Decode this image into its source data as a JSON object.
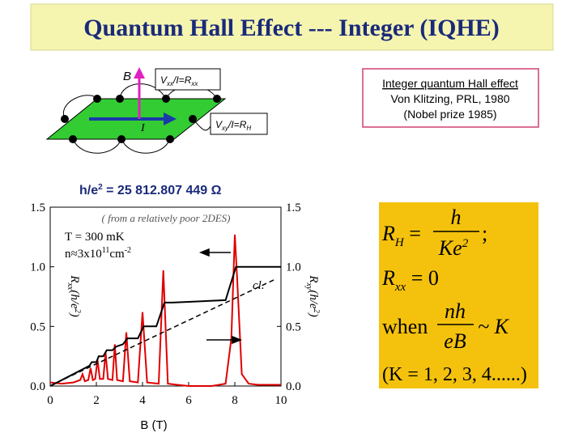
{
  "slide": {
    "title": "Quantum Hall Effect --- Integer (IQHE)",
    "diagram": {
      "b_label": "B",
      "i_label": "I",
      "vxx": [
        "V",
        "xx",
        "/I=R",
        "xx"
      ],
      "vxy": [
        "V",
        "xy",
        "/I=R",
        "H"
      ]
    },
    "reference": [
      "Integer quantum Hall effect",
      "Von Klitzing, PRL, 1980",
      "(Nobel prize 1985)"
    ],
    "constant": [
      "h/e",
      "2",
      " = 25 812.807 449 Ω"
    ],
    "formula": {
      "rh": [
        "R",
        "H",
        " = ",
        "h",
        "Ke",
        "2",
        ";"
      ],
      "rxx": [
        "R",
        "xx",
        " = 0"
      ],
      "when": [
        "when",
        "nh",
        "eB",
        "~ K"
      ],
      "k": "(K = 1, 2, 3, 4......)"
    }
  },
  "chart_data": {
    "type": "line",
    "xlabel": "B (T)",
    "ylabel": [
      "R",
      "xx",
      "(h/e",
      "2",
      ")"
    ],
    "y2label": [
      "R",
      "xy",
      "(h/e",
      "2",
      ")"
    ],
    "annotations": {
      "sample": "( from a relatively poor 2DES)",
      "temp": "T = 300 mK",
      "density": [
        "n≈3x10",
        "11",
        "cm",
        "-2"
      ],
      "classical": "cl."
    },
    "xlim": [
      0,
      10
    ],
    "xticks": [
      0,
      2,
      4,
      6,
      8,
      10
    ],
    "ylim": [
      0,
      1.5
    ],
    "yticks": [
      {
        "value": 0,
        "label": "0.0"
      },
      0.5,
      {
        "value": 1,
        "label": "1.0"
      },
      1.5
    ],
    "y2lim": [
      0,
      1.5
    ],
    "y2ticks": [
      {
        "value": 0,
        "label": "0.0"
      },
      0.5,
      {
        "value": 1,
        "label": "1.0"
      },
      1.5
    ],
    "series": [
      {
        "color": "#e00000",
        "x": [
          0,
          0.5,
          1,
          1.3,
          1.4,
          1.5,
          1.65,
          1.75,
          1.85,
          1.95,
          2.05,
          2.15,
          2.3,
          2.4,
          2.5,
          2.7,
          2.8,
          2.9,
          3.15,
          3.3,
          3.45,
          3.8,
          4.0,
          4.2,
          4.7,
          4.9,
          5.1,
          5.5,
          6,
          7,
          7.6,
          7.85,
          8.0,
          8.1,
          8.3,
          8.6,
          9,
          10
        ],
        "values": [
          0.03,
          0.02,
          0.03,
          0.05,
          0.1,
          0.04,
          0.05,
          0.15,
          0.05,
          0.06,
          0.22,
          0.06,
          0.06,
          0.28,
          0.06,
          0.05,
          0.35,
          0.05,
          0.04,
          0.45,
          0.04,
          0.03,
          0.62,
          0.03,
          0.02,
          0.97,
          0.02,
          0.01,
          0.0,
          0.0,
          0.02,
          0.4,
          1.27,
          0.9,
          0.1,
          0.02,
          0.01,
          0.01
        ]
      },
      {
        "color": "#000000",
        "axis": "y2",
        "x": [
          0,
          1.0,
          1.7,
          1.8,
          2.0,
          2.1,
          2.3,
          2.45,
          2.7,
          2.85,
          3.15,
          3.35,
          3.8,
          4.05,
          4.6,
          4.95,
          5.3,
          7.6,
          8.05,
          8.5,
          10
        ],
        "values": [
          0.0,
          0.1,
          0.17,
          0.2,
          0.2,
          0.25,
          0.25,
          0.3,
          0.3,
          0.33,
          0.35,
          0.4,
          0.4,
          0.5,
          0.5,
          0.7,
          0.7,
          0.72,
          1.0,
          1.0,
          1.0
        ]
      },
      {
        "color": "#000000",
        "axis": "y2",
        "dashed": true,
        "x": [
          0.3,
          9.8
        ],
        "values": [
          0.03,
          0.9
        ]
      }
    ]
  }
}
